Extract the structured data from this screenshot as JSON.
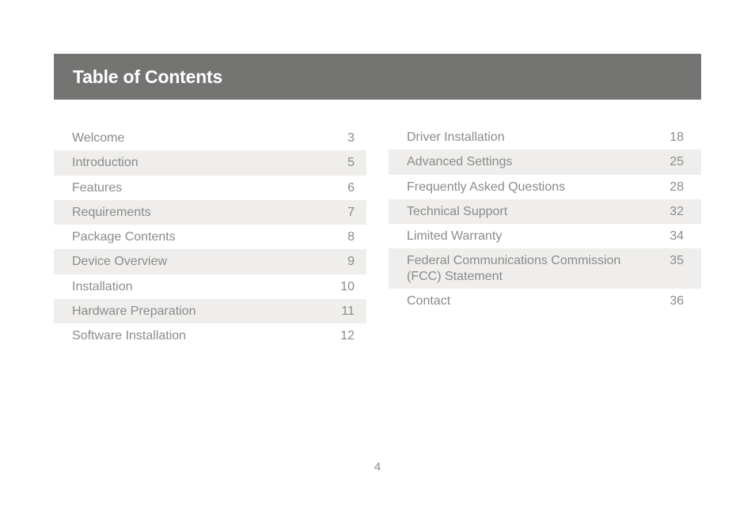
{
  "header": {
    "title": "Table of Contents"
  },
  "toc": {
    "left": [
      {
        "label": "Welcome",
        "page": "3"
      },
      {
        "label": "Introduction",
        "page": "5"
      },
      {
        "label": "Features",
        "page": "6"
      },
      {
        "label": "Requirements",
        "page": "7"
      },
      {
        "label": "Package Contents",
        "page": "8"
      },
      {
        "label": "Device Overview",
        "page": "9"
      },
      {
        "label": "Installation",
        "page": "10"
      },
      {
        "label": "Hardware Preparation",
        "page": "11"
      },
      {
        "label": "Software Installation",
        "page": "12"
      }
    ],
    "right": [
      {
        "label": "Driver Installation",
        "page": "18"
      },
      {
        "label": "Advanced Settings",
        "page": "25"
      },
      {
        "label": "Frequently Asked Questions",
        "page": "28"
      },
      {
        "label": "Technical Support",
        "page": "32"
      },
      {
        "label": "Limited Warranty",
        "page": "34"
      },
      {
        "label": "Federal Communications Commission (FCC) Statement",
        "page": "35"
      },
      {
        "label": "Contact",
        "page": "36"
      }
    ]
  },
  "footer": {
    "page_number": "4"
  },
  "colors": {
    "header_background": "#747572",
    "header_text": "#ffffff",
    "row_shade": "#efeeec",
    "body_text": "#8b8b8b"
  }
}
